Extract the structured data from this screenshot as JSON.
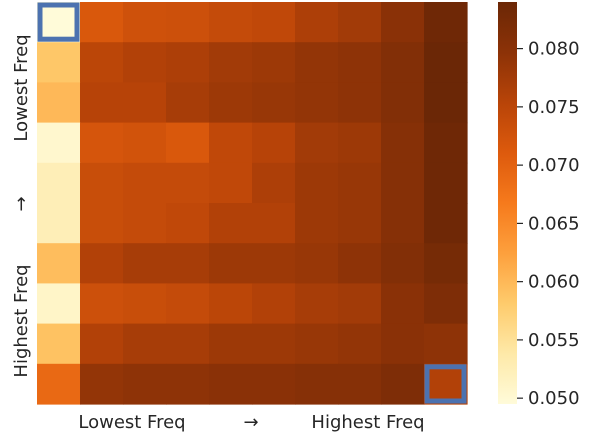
{
  "chart_data": {
    "type": "heatmap",
    "title": "",
    "xlabel": {
      "low": "Lowest Freq",
      "arrow": "→",
      "high": "Highest Freq"
    },
    "ylabel": {
      "low": "Lowest Freq",
      "arrow": "→",
      "high": "Highest Freq"
    },
    "rows": 10,
    "cols": 10,
    "values": [
      [
        0.0495,
        0.0715,
        0.0728,
        0.073,
        0.074,
        0.0745,
        0.0765,
        0.0775,
        0.08,
        0.0835
      ],
      [
        0.0585,
        0.075,
        0.076,
        0.0765,
        0.0775,
        0.078,
        0.079,
        0.0795,
        0.081,
        0.084
      ],
      [
        0.06,
        0.0755,
        0.0755,
        0.077,
        0.078,
        0.0785,
        0.079,
        0.0795,
        0.081,
        0.084
      ],
      [
        0.0505,
        0.072,
        0.0725,
        0.0715,
        0.0745,
        0.0755,
        0.0775,
        0.078,
        0.0805,
        0.0835
      ],
      [
        0.0525,
        0.0735,
        0.074,
        0.074,
        0.0745,
        0.0765,
        0.078,
        0.0785,
        0.0805,
        0.0835
      ],
      [
        0.0525,
        0.0735,
        0.074,
        0.0745,
        0.076,
        0.076,
        0.078,
        0.0785,
        0.0805,
        0.0835
      ],
      [
        0.0595,
        0.076,
        0.077,
        0.077,
        0.078,
        0.078,
        0.0785,
        0.0795,
        0.081,
        0.0825
      ],
      [
        0.051,
        0.073,
        0.0735,
        0.074,
        0.075,
        0.076,
        0.077,
        0.0775,
        0.08,
        0.0815
      ],
      [
        0.059,
        0.076,
        0.077,
        0.077,
        0.078,
        0.078,
        0.0785,
        0.079,
        0.08,
        0.0795
      ],
      [
        0.069,
        0.079,
        0.0795,
        0.0795,
        0.08,
        0.08,
        0.0805,
        0.0805,
        0.0815,
        0.076
      ]
    ],
    "colorbar": {
      "min": 0.0495,
      "max": 0.084,
      "ticks": [
        "0.050",
        "0.055",
        "0.060",
        "0.065",
        "0.070",
        "0.075",
        "0.080"
      ],
      "tick_values": [
        0.05,
        0.055,
        0.06,
        0.065,
        0.07,
        0.075,
        0.08
      ]
    },
    "highlighted_cells": [
      {
        "row": 0,
        "col": 0,
        "color": "#4c72b0"
      },
      {
        "row": 9,
        "col": 9,
        "color": "#4c72b0"
      }
    ],
    "colormap": [
      "#fffbd9",
      "#fee9a8",
      "#fecb6c",
      "#fda03d",
      "#f67a1c",
      "#dd5a0d",
      "#b84408",
      "#8c3207",
      "#6b2706"
    ]
  }
}
